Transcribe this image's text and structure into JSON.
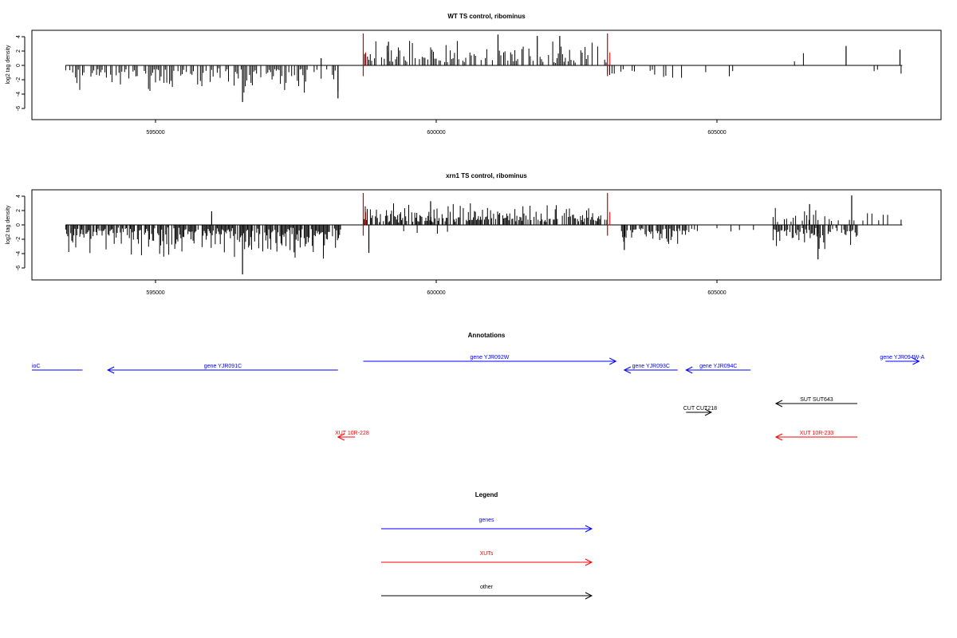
{
  "chart_data": [
    {
      "type": "bar",
      "title": "WT TS control, ribominus",
      "ylabel": "log2 tag density",
      "xlabel": "",
      "xlim": [
        592000,
        609000
      ],
      "ylim": [
        -7.5,
        5
      ],
      "x_ticks": [
        595000,
        600000,
        605000
      ],
      "x_tick_labels": [
        "595000",
        "600000",
        "605000"
      ],
      "y_ticks": [
        4,
        2,
        0,
        -2,
        -4,
        -6
      ],
      "y_tick_labels": [
        "4",
        "2",
        "0",
        "-2",
        "-4",
        "-6"
      ],
      "highlight_x": [
        598700,
        603050
      ],
      "highlight_color": "#cc0000",
      "baseline_range": [
        593400,
        608300
      ],
      "segments": [
        {
          "x_start": 593400,
          "x_end": 598300,
          "sign": -1,
          "step": 25,
          "max": 3.8,
          "density": 0.6,
          "seed": 11
        },
        {
          "x_start": 598700,
          "x_end": 603050,
          "sign": 1,
          "step": 25,
          "max": 3.4,
          "density": 0.55,
          "seed": 12
        },
        {
          "x_start": 603050,
          "x_end": 604500,
          "sign": -1,
          "step": 40,
          "max": 2.5,
          "density": 0.4,
          "seed": 13
        },
        {
          "x_start": 604500,
          "x_end": 608300,
          "sign": -1,
          "step": 60,
          "max": 2.2,
          "density": 0.12,
          "seed": 14
        },
        {
          "x_start": 605500,
          "x_end": 608300,
          "sign": 1,
          "step": 80,
          "max": 2.2,
          "density": 0.08,
          "seed": 15
        }
      ],
      "peaks": [
        {
          "x": 596550,
          "y": -5.1
        },
        {
          "x": 598250,
          "y": -4.6
        },
        {
          "x": 601100,
          "y": 4.3
        },
        {
          "x": 601800,
          "y": 4.1
        },
        {
          "x": 602200,
          "y": 4.1
        },
        {
          "x": 607300,
          "y": 2.7
        },
        {
          "x": 608260,
          "y": 2.2
        },
        {
          "x": 597950,
          "y": 1.0
        },
        {
          "x": 599150,
          "y": 3.3
        }
      ]
    },
    {
      "type": "bar",
      "title": "xrn1 TS control, ribominus",
      "ylabel": "log2 tag density",
      "xlabel": "",
      "xlim": [
        592000,
        609000
      ],
      "ylim": [
        -7.5,
        5
      ],
      "x_ticks": [
        595000,
        600000,
        605000
      ],
      "x_tick_labels": [
        "595000",
        "600000",
        "605000"
      ],
      "y_ticks": [
        4,
        2,
        0,
        -2,
        -4,
        -6
      ],
      "y_tick_labels": [
        "4",
        "2",
        "0",
        "-2",
        "-4",
        "-6"
      ],
      "highlight_x": [
        598700,
        603050
      ],
      "highlight_color": "#cc0000",
      "baseline_range": [
        593400,
        608300
      ],
      "segments": [
        {
          "x_start": 593400,
          "x_end": 598300,
          "sign": -1,
          "step": 18,
          "max": 4.8,
          "density": 0.85,
          "seed": 21
        },
        {
          "x_start": 598700,
          "x_end": 603050,
          "sign": 1,
          "step": 18,
          "max": 3.0,
          "density": 0.7,
          "seed": 22
        },
        {
          "x_start": 598700,
          "x_end": 600200,
          "sign": -1,
          "step": 60,
          "max": 2.4,
          "density": 0.2,
          "seed": 23
        },
        {
          "x_start": 603300,
          "x_end": 604500,
          "sign": -1,
          "step": 20,
          "max": 3.0,
          "density": 0.75,
          "seed": 24
        },
        {
          "x_start": 604500,
          "x_end": 605800,
          "sign": -1,
          "step": 50,
          "max": 1.0,
          "density": 0.25,
          "seed": 25
        },
        {
          "x_start": 606000,
          "x_end": 607500,
          "sign": -1,
          "step": 20,
          "max": 4.0,
          "density": 0.75,
          "seed": 26
        },
        {
          "x_start": 606000,
          "x_end": 608300,
          "sign": 1,
          "step": 40,
          "max": 2.4,
          "density": 0.45,
          "seed": 27
        }
      ],
      "peaks": [
        {
          "x": 596550,
          "y": -6.9
        },
        {
          "x": 596000,
          "y": 1.9
        },
        {
          "x": 598800,
          "y": -3.9
        },
        {
          "x": 603350,
          "y": -3.5
        },
        {
          "x": 606800,
          "y": -4.8
        },
        {
          "x": 607400,
          "y": 4.1
        },
        {
          "x": 606650,
          "y": 2.9
        },
        {
          "x": 599900,
          "y": 3.3
        }
      ]
    }
  ],
  "annotations": {
    "title": "Annotations",
    "items": [
      {
        "label": "ioC",
        "x_start": 592000,
        "x_end": 593700,
        "dir": "none",
        "track": 0,
        "color": "#0000ff",
        "label_x": 592100
      },
      {
        "label": "gene YJR091C",
        "x_start": 594150,
        "x_end": 598250,
        "dir": "left",
        "track": 0,
        "color": "#0000ff"
      },
      {
        "label": "gene YJR092W",
        "x_start": 598700,
        "x_end": 603200,
        "dir": "right",
        "track": 1,
        "color": "#0000ff"
      },
      {
        "label": "gene YJR093C",
        "x_start": 603350,
        "x_end": 604300,
        "dir": "left",
        "track": 0,
        "color": "#0000ff"
      },
      {
        "label": "gene YJR094C",
        "x_start": 604450,
        "x_end": 605600,
        "dir": "left",
        "track": 0,
        "color": "#0000ff"
      },
      {
        "label": "gene YJR094W-A",
        "x_start": 608000,
        "x_end": 608600,
        "dir": "right",
        "track": 1,
        "color": "#0000ff",
        "label_x": 608300
      },
      {
        "label": "SUT SUT643",
        "x_start": 606050,
        "x_end": 607500,
        "dir": "left",
        "track": 2,
        "color": "#000000"
      },
      {
        "label": "CUT CUT218",
        "x_start": 604450,
        "x_end": 604900,
        "dir": "right",
        "track": 3,
        "color": "#000000",
        "label_x": 604700
      },
      {
        "label": "XUT 10R-228",
        "x_start": 598250,
        "x_end": 598550,
        "dir": "left",
        "track": 4,
        "color": "#ff0000",
        "label_x": 598500
      },
      {
        "label": "XUT 10R-233",
        "x_start": 606050,
        "x_end": 607500,
        "dir": "left",
        "track": 4,
        "color": "#ff0000"
      }
    ]
  },
  "legend": {
    "title": "Legend",
    "items": [
      {
        "label": "genes",
        "color": "#0000ff"
      },
      {
        "label": "XUTs",
        "color": "#ff0000"
      },
      {
        "label": "other",
        "color": "#000000"
      }
    ]
  }
}
